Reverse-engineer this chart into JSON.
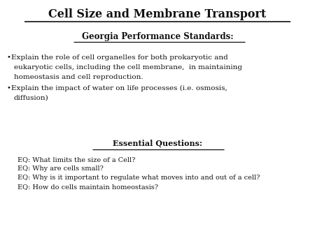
{
  "title": "Cell Size and Membrane Transport",
  "subtitle": "Georgia Performance Standards:",
  "bullet1_line1": "•Explain the role of cell organelles for both prokaryotic and",
  "bullet1_line2": "eukaryotic cells, including the cell membrane,  in maintaining",
  "bullet1_line3": "homeostasis and cell reproduction.",
  "bullet2_line1": "•Explain the impact of water on life processes (i.e. osmosis,",
  "bullet2_line2": "diffusion)",
  "eq_header": "Essential Questions:",
  "eq1": "EQ: What limits the size of a Cell?",
  "eq2": "EQ: Why are cells small?",
  "eq3": "EQ: Why is it important to regulate what moves into and out of a cell?",
  "eq4": "EQ: How do cells maintain homeostasis?",
  "bg_color": "#ffffff",
  "text_color": "#111111",
  "title_fontsize": 11.5,
  "subtitle_fontsize": 8.5,
  "bullet_fontsize": 7.5,
  "eq_header_fontsize": 8.0,
  "eq_fontsize": 7.0
}
